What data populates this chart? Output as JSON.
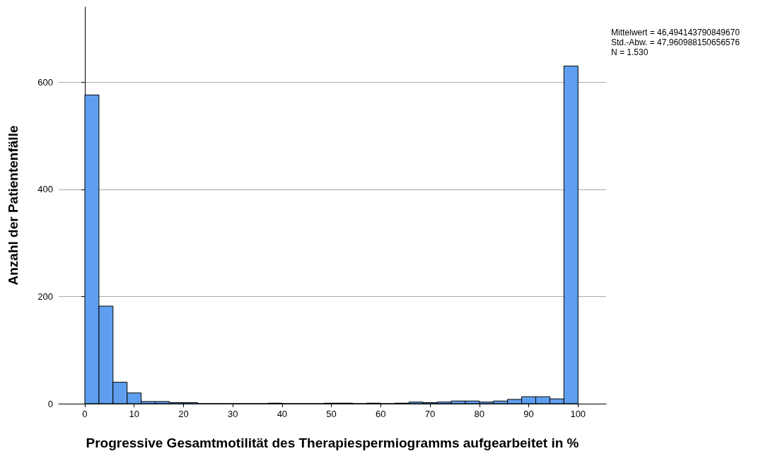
{
  "chart_data": {
    "type": "histogram",
    "xlabel": "Progressive Gesamtmotilität des Therapiespermiogramms aufgearbeitet in %",
    "ylabel": "Anzahl der Patientenfälle",
    "bins": [
      0,
      2.86,
      5.71,
      8.57,
      11.43,
      14.29,
      17.14,
      20,
      22.86,
      25.71,
      28.57,
      31.43,
      34.29,
      37.14,
      40,
      42.86,
      45.71,
      48.57,
      51.43,
      54.29,
      57.14,
      60,
      62.86,
      65.71,
      68.57,
      71.43,
      74.29,
      77.14,
      80,
      82.86,
      85.71,
      88.57,
      91.43,
      94.29,
      97.14,
      100
    ],
    "values": [
      576,
      182,
      40,
      20,
      4,
      4,
      2,
      2,
      0,
      0,
      0,
      0,
      0,
      1,
      0,
      0,
      0,
      1,
      1,
      0,
      1,
      0,
      1,
      3,
      2,
      3,
      5,
      5,
      3,
      5,
      8,
      13,
      13,
      9,
      630
    ],
    "color": "#5f9ff0",
    "xlim": [
      -5.3,
      105.7
    ],
    "xticks": [
      0,
      10,
      20,
      30,
      40,
      50,
      60,
      70,
      80,
      90,
      100
    ],
    "ylim": [
      0,
      740
    ],
    "yticks": [
      0,
      200,
      400,
      600
    ],
    "grid": "y",
    "annotations": [
      "Mittelwert = 46,494143790849670",
      "Std.-Abw. = 47,960988150656576",
      "N = 1.530"
    ]
  }
}
